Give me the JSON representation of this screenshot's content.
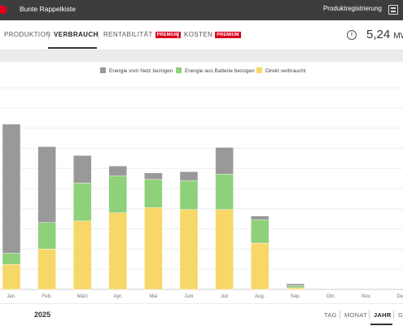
{
  "app": {
    "title": "Bunte Rappelkiste",
    "registration_label": "Produktregistrierung"
  },
  "tabs": [
    {
      "label": "PRODUKTION",
      "badge": ""
    },
    {
      "label": "VERBRAUCH",
      "badge": ""
    },
    {
      "label": "RENTABILITÄT",
      "badge": "PREMIUM"
    },
    {
      "label": "KOSTEN",
      "badge": "PREMIUM"
    }
  ],
  "summary": {
    "value": "5,24",
    "unit": "MW"
  },
  "legend": [
    {
      "label": "Energie vom Netz bezogen",
      "color": "#999999"
    },
    {
      "label": "Energie aus Batterie bezogen",
      "color": "#8fd07a"
    },
    {
      "label": "Direkt verbraucht",
      "color": "#f7d768"
    }
  ],
  "chart_data": {
    "type": "bar",
    "stacked": true,
    "categories": [
      "Jan.",
      "Feb.",
      "März",
      "Apr.",
      "Mai",
      "Juni",
      "Juli",
      "Aug.",
      "Sep.",
      "Okt.",
      "Nov.",
      "Dez."
    ],
    "series": [
      {
        "name": "Direkt verbraucht",
        "color": "#f7d768",
        "values": [
          62,
          100,
          170,
          190,
          203,
          198,
          198,
          115,
          4,
          0,
          0,
          0
        ]
      },
      {
        "name": "Energie aus Batterie bezogen",
        "color": "#8fd07a",
        "values": [
          28,
          66,
          94,
          92,
          70,
          72,
          88,
          58,
          5,
          0,
          0,
          0
        ]
      },
      {
        "name": "Energie vom Netz bezogen",
        "color": "#999999",
        "values": [
          320,
          188,
          68,
          24,
          16,
          22,
          66,
          9,
          5,
          0,
          0,
          0
        ]
      }
    ],
    "ylim": [
      0,
      500
    ],
    "grid": true,
    "legend_position": "top-center"
  },
  "footer": {
    "year": "2025",
    "periods": [
      {
        "label": "TAG"
      },
      {
        "label": "MONAT"
      },
      {
        "label": "JAHR"
      },
      {
        "label": "G"
      }
    ]
  }
}
